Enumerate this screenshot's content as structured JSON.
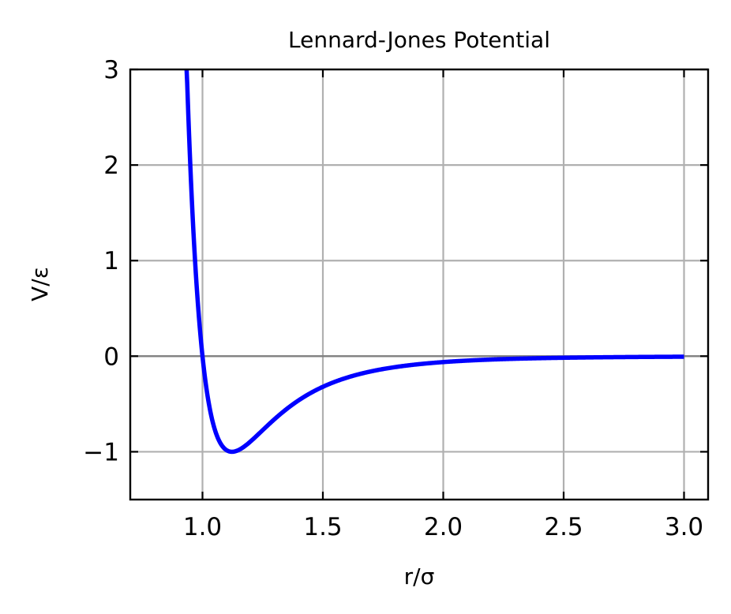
{
  "chart_data": {
    "type": "line",
    "title": "Lennard-Jones Potential",
    "xlabel": "r/σ",
    "ylabel": "V/ε",
    "xlim": [
      0.7,
      3.1
    ],
    "ylim": [
      -1.5,
      3.0
    ],
    "xticks": [
      1.0,
      1.5,
      2.0,
      2.5,
      3.0
    ],
    "xtick_labels": [
      "1.0",
      "1.5",
      "2.0",
      "2.5",
      "3.0"
    ],
    "yticks": [
      -1,
      0,
      1,
      2,
      3
    ],
    "ytick_labels": [
      "−1",
      "0",
      "1",
      "2",
      "3"
    ],
    "grid": true,
    "tick_direction": "in",
    "ticks_on_all_sides": true,
    "reference_line": {
      "y": 0,
      "color": "#808080"
    },
    "series": [
      {
        "color": "#0000ff",
        "function": "4*(x^-12 - x^-6)",
        "x_range": [
          0.934,
          3.0
        ],
        "x": [
          0.934,
          0.95,
          0.97,
          1.0,
          1.03,
          1.06,
          1.09,
          1.12,
          1.15,
          1.2,
          1.3,
          1.4,
          1.5,
          1.7,
          2.0,
          2.5,
          3.0
        ],
        "y": [
          3.0,
          2.04,
          1.04,
          0.0,
          -0.55,
          -0.85,
          -0.98,
          -1.0,
          -0.98,
          -0.87,
          -0.61,
          -0.41,
          -0.32,
          -0.17,
          -0.06,
          -0.016,
          -0.0055
        ]
      }
    ]
  }
}
